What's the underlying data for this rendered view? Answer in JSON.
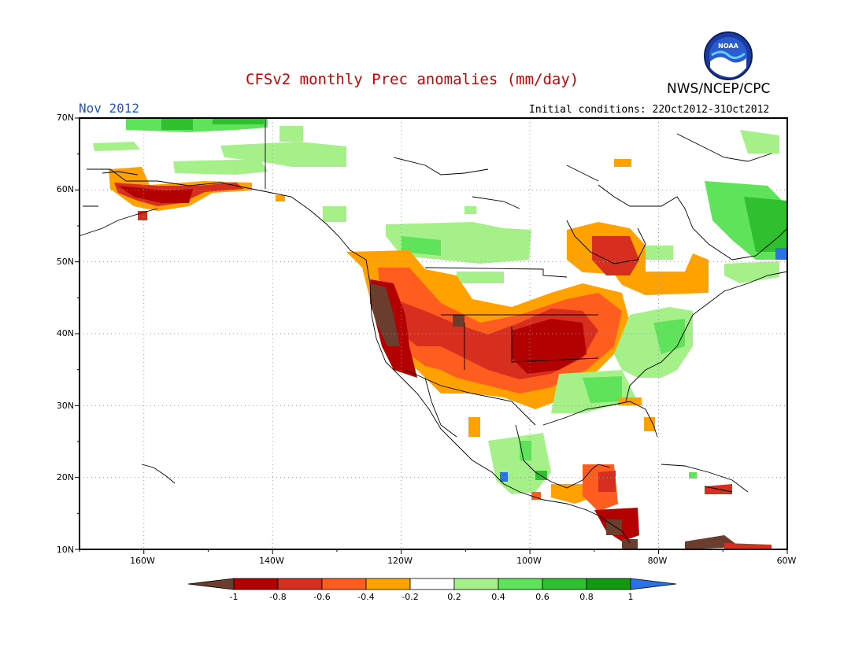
{
  "header": {
    "title": "CFSv2 monthly Prec anomalies (mm/day)",
    "org": "NWS/NCEP/CPC",
    "logo_text": "NOAA",
    "month": "Nov 2012",
    "init": "Initial conditions: 22Oct2012-31Oct2012"
  },
  "colors": {
    "title": "#cc0000",
    "month": "#2255cc",
    "grid": "#999999"
  },
  "map": {
    "lat_labels": [
      "70N",
      "60N",
      "50N",
      "40N",
      "30N",
      "20N",
      "10N"
    ],
    "lon_labels": [
      "160W",
      "140W",
      "120W",
      "100W",
      "80W",
      "60W"
    ],
    "lat_range": [
      10,
      70
    ],
    "lon_range": [
      -170,
      -60
    ]
  },
  "legend": {
    "labels": [
      "-1",
      "-0.8",
      "-0.6",
      "-0.4",
      "-0.2",
      "0.2",
      "0.4",
      "0.6",
      "0.8",
      "1"
    ],
    "colors": [
      "#6b3d2e",
      "#b30000",
      "#d62f1f",
      "#ff5c1f",
      "#ffa200",
      "#ffffff",
      "#a6f08a",
      "#5fe35a",
      "#2fbf2f",
      "#119911",
      "#2a73e6"
    ]
  }
}
